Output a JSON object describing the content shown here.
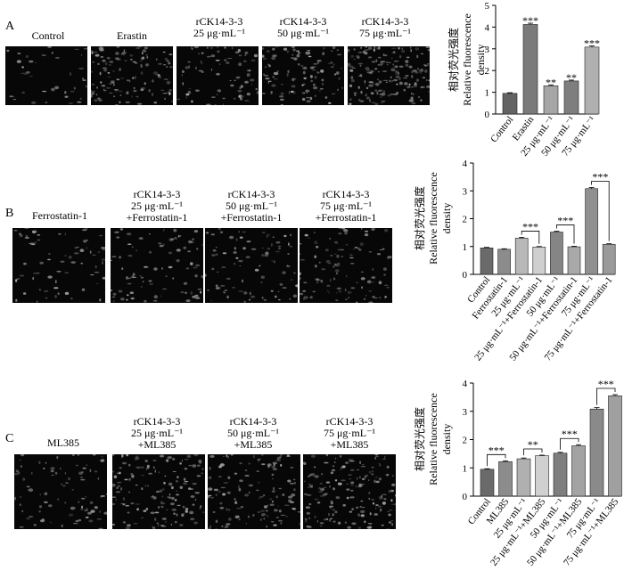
{
  "panels": [
    {
      "letter": "A",
      "images": [
        {
          "label": [
            "Control"
          ],
          "cells": 40
        },
        {
          "label": [
            "Erastin"
          ],
          "cells": 120
        },
        {
          "label": [
            "rCK14-3-3",
            "25 μg·mL⁻¹"
          ],
          "cells": 80
        },
        {
          "label": [
            "rCK14-3-3",
            "50 μg·mL⁻¹"
          ],
          "cells": 110
        },
        {
          "label": [
            "rCK14-3-3",
            "75 μg·mL⁻¹"
          ],
          "cells": 170
        }
      ]
    },
    {
      "letter": "B",
      "images": [
        {
          "label": [
            "Ferrostatin-1"
          ],
          "cells": 70
        },
        {
          "label": [
            "rCK14-3-3",
            "25 μg·mL⁻¹",
            "+Ferrostatin-1"
          ],
          "cells": 90
        },
        {
          "label": [
            "rCK14-3-3",
            "50 μg·mL⁻¹",
            "+Ferrostatin-1"
          ],
          "cells": 90
        },
        {
          "label": [
            "rCK14-3-3",
            "75 μg·mL⁻¹",
            "+Ferrostatin-1"
          ],
          "cells": 110
        }
      ]
    },
    {
      "letter": "C",
      "images": [
        {
          "label": [
            "ML385"
          ],
          "cells": 90
        },
        {
          "label": [
            "rCK14-3-3",
            "25 μg·mL⁻¹",
            "+ML385"
          ],
          "cells": 150
        },
        {
          "label": [
            "rCK14-3-3",
            "50 μg·mL⁻¹",
            "+ML385"
          ],
          "cells": 130
        },
        {
          "label": [
            "rCK14-3-3",
            "75 μg·mL⁻¹",
            "+ML385"
          ],
          "cells": 170
        }
      ]
    }
  ],
  "chart_data": [
    {
      "type": "bar",
      "ylabel": [
        "相对荧光强度",
        "Relative fluorescence",
        "density"
      ],
      "ylim": [
        0,
        5
      ],
      "yticks": [
        0,
        1,
        2,
        3,
        4,
        5
      ],
      "categories": [
        "Control",
        "Erastin",
        "25 μg·mL⁻¹",
        "50 μg·mL⁻¹",
        "75 μg·mL⁻¹"
      ],
      "values": [
        0.95,
        4.12,
        1.3,
        1.52,
        3.08
      ],
      "errors": [
        0.03,
        0.06,
        0.04,
        0.04,
        0.05
      ],
      "colors": [
        "#636363",
        "#7a7a7a",
        "#a6a6a6",
        "#7e7e7e",
        "#b0b0b0"
      ],
      "labels_above": [
        "",
        "***",
        "**",
        "**",
        "***"
      ],
      "brackets": []
    },
    {
      "type": "bar",
      "ylabel": [
        "相对荧光强度",
        "Relative fluorescence",
        "density"
      ],
      "ylim": [
        0,
        4
      ],
      "yticks": [
        0,
        1,
        2,
        3,
        4
      ],
      "categories": [
        "Control",
        "Ferrostatin-1",
        "25 μg·mL⁻¹",
        "25 μg·mL⁻¹+Ferrostatin-1",
        "50 μg·mL⁻¹",
        "50 μg·mL⁻¹+Ferrostatin-1",
        "75 μg·mL⁻¹",
        "75 μg·mL⁻¹+Ferrostatin-1"
      ],
      "values": [
        0.95,
        0.9,
        1.3,
        0.98,
        1.52,
        0.99,
        3.08,
        1.08
      ],
      "errors": [
        0.02,
        0.02,
        0.03,
        0.02,
        0.03,
        0.02,
        0.04,
        0.02
      ],
      "colors": [
        "#6a6a6a",
        "#8c8c8c",
        "#b8b8b8",
        "#cfcfcf",
        "#858585",
        "#a9a9a9",
        "#909090",
        "#9a9a9a"
      ],
      "labels_above": [],
      "brackets": [
        {
          "from": 2,
          "to": 3,
          "label": "***"
        },
        {
          "from": 4,
          "to": 5,
          "label": "***"
        },
        {
          "from": 6,
          "to": 7,
          "label": "***"
        }
      ]
    },
    {
      "type": "bar",
      "ylabel": [
        "相对荧光强度",
        "Relative fluorescence",
        "density"
      ],
      "ylim": [
        0,
        4
      ],
      "yticks": [
        0,
        1,
        2,
        3,
        4
      ],
      "categories": [
        "Control",
        "ML385",
        "25 μg·mL⁻¹",
        "25 μg·mL⁻¹+ML385",
        "50 μg·mL⁻¹",
        "50 μg·mL⁻¹+ML385",
        "75 μg·mL⁻¹",
        "75 μg·mL⁻¹+ML385"
      ],
      "values": [
        0.95,
        1.22,
        1.32,
        1.43,
        1.52,
        1.78,
        3.08,
        3.55
      ],
      "errors": [
        0.02,
        0.03,
        0.03,
        0.02,
        0.03,
        0.04,
        0.05,
        0.04
      ],
      "colors": [
        "#6a6a6a",
        "#8c8c8c",
        "#b0b0b0",
        "#d0d0d0",
        "#7e7e7e",
        "#a3a3a3",
        "#8a8a8a",
        "#a0a0a0"
      ],
      "labels_above": [],
      "brackets": [
        {
          "from": 0,
          "to": 1,
          "label": "***"
        },
        {
          "from": 2,
          "to": 3,
          "label": "**"
        },
        {
          "from": 4,
          "to": 5,
          "label": "***"
        },
        {
          "from": 6,
          "to": 7,
          "label": "***"
        }
      ]
    }
  ]
}
